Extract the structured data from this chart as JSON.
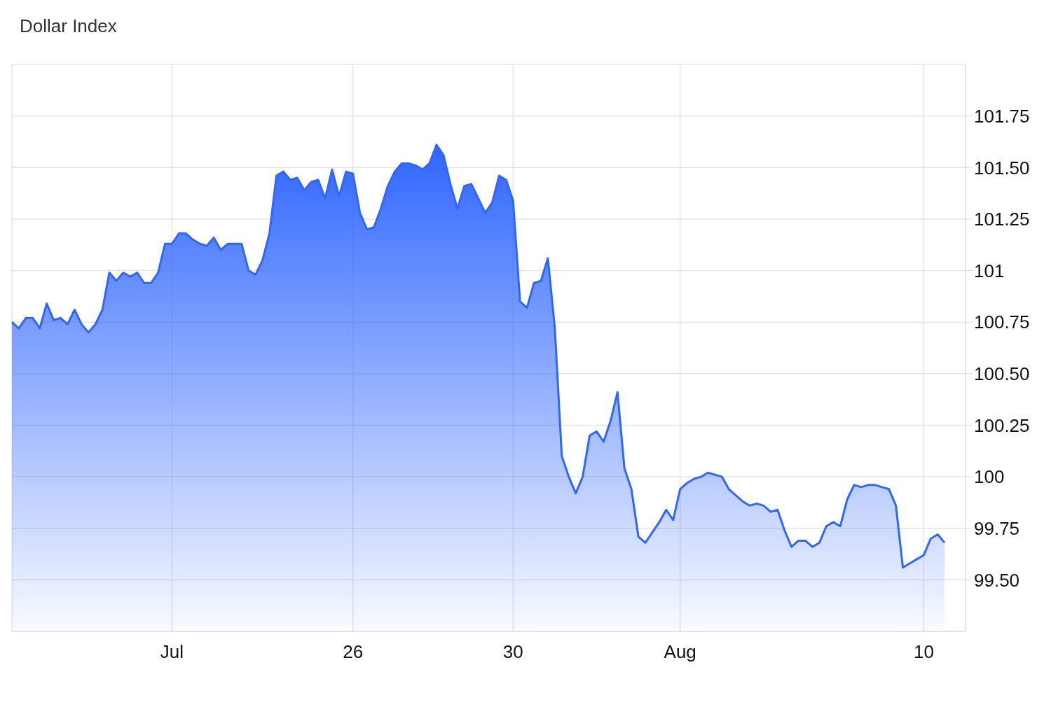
{
  "chart_data": {
    "type": "area",
    "title": "Dollar Index",
    "categories": [
      null,
      null,
      null,
      null,
      null,
      null,
      null,
      null,
      null,
      null,
      null,
      null,
      null,
      null,
      null,
      null,
      null,
      null,
      null,
      null,
      null,
      null,
      null,
      "Jul",
      null,
      null,
      null,
      null,
      null,
      null,
      null,
      null,
      null,
      null,
      null,
      null,
      null,
      null,
      null,
      null,
      null,
      null,
      null,
      null,
      null,
      null,
      null,
      null,
      null,
      "26",
      null,
      null,
      null,
      null,
      null,
      null,
      null,
      null,
      null,
      null,
      null,
      null,
      null,
      null,
      null,
      null,
      null,
      null,
      null,
      null,
      null,
      null,
      "30",
      null,
      null,
      null,
      null,
      null,
      null,
      null,
      null,
      null,
      null,
      null,
      null,
      null,
      null,
      null,
      null,
      null,
      null,
      null,
      null,
      null,
      null,
      null,
      "Aug",
      null,
      null,
      null,
      null,
      null,
      null,
      null,
      null,
      null,
      null,
      null,
      null,
      null,
      null,
      null,
      null,
      null,
      null,
      null,
      null,
      null,
      null,
      null,
      null,
      null,
      null,
      null,
      null,
      null,
      null,
      null,
      null,
      null,
      null,
      "10",
      null,
      null,
      null,
      null,
      null,
      null
    ],
    "series": [
      {
        "color": "#2f66ff",
        "values": [
          100.75,
          100.72,
          100.77,
          100.77,
          100.72,
          100.84,
          100.76,
          100.77,
          100.74,
          100.81,
          100.74,
          100.7,
          100.74,
          100.81,
          100.99,
          100.95,
          100.99,
          100.97,
          100.99,
          100.94,
          100.94,
          100.99,
          101.13,
          101.13,
          101.18,
          101.18,
          101.15,
          101.13,
          101.12,
          101.16,
          101.1,
          101.13,
          101.13,
          101.13,
          101.0,
          100.98,
          101.05,
          101.18,
          101.46,
          101.48,
          101.44,
          101.45,
          101.39,
          101.43,
          101.44,
          101.35,
          101.49,
          101.36,
          101.48,
          101.47,
          101.28,
          101.2,
          101.21,
          101.3,
          101.41,
          101.48,
          101.52,
          101.52,
          101.51,
          101.49,
          101.52,
          101.61,
          101.56,
          101.42,
          101.3,
          101.41,
          101.42,
          101.35,
          101.28,
          101.33,
          101.46,
          101.44,
          101.34,
          100.85,
          100.82,
          100.94,
          100.95,
          101.06,
          100.72,
          100.1,
          100.0,
          99.92,
          100.0,
          100.2,
          100.22,
          100.17,
          100.27,
          100.41,
          100.04,
          99.94,
          99.71,
          99.68,
          99.73,
          99.78,
          99.84,
          99.79,
          99.94,
          99.97,
          99.99,
          100.0,
          100.02,
          100.01,
          100.0,
          99.94,
          99.91,
          99.88,
          99.86,
          99.87,
          99.86,
          99.83,
          99.84,
          99.74,
          99.66,
          99.69,
          99.69,
          99.66,
          99.68,
          99.76,
          99.78,
          99.76,
          99.89,
          99.96,
          99.95,
          99.96,
          99.96,
          99.95,
          99.94,
          99.86,
          99.56,
          99.58,
          99.6,
          99.62,
          99.7,
          99.72,
          99.68,
          null,
          null,
          null
        ]
      }
    ],
    "ylim": [
      99.25,
      102
    ],
    "yticks": [
      {
        "value": 99.5,
        "label": "99.50"
      },
      99.75,
      100,
      {
        "value": 100.25,
        "label": "100.25"
      },
      {
        "value": 100.5,
        "label": "100.50"
      },
      100.75,
      101,
      {
        "value": 101.25,
        "label": "101.25"
      },
      {
        "value": 101.5,
        "label": "101.50"
      },
      101.75
    ],
    "grid": true,
    "line_style": "solid"
  }
}
